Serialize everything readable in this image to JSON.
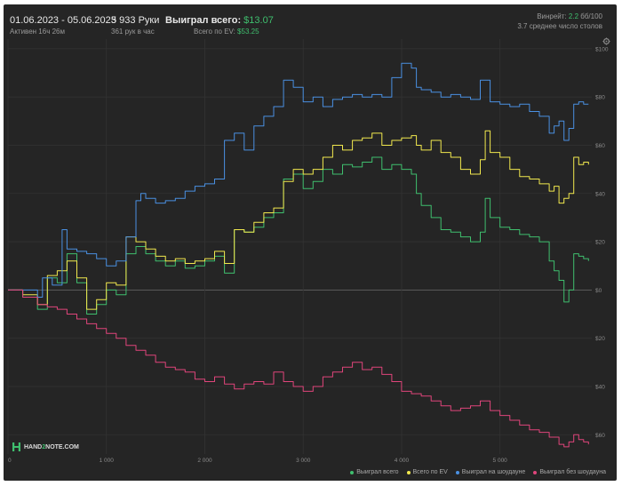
{
  "header": {
    "date_range": "01.06.2023 - 05.06.2023",
    "active": "Активен 16ч 26м",
    "hands": "5 933 Руки",
    "hands_per_hour": "361 рук в час",
    "won_total_label": "Выиграл всего:",
    "won_total_value": "$13.07",
    "ev_label": "Всего по EV:",
    "ev_value": "$53.25",
    "winrate_label": "Винрейт:",
    "winrate_value": "2.2",
    "winrate_unit": "бб/100",
    "avg_tables": "3.7 среднее число столов"
  },
  "logo": {
    "text_part1": "HAND",
    "text_part2": "2",
    "text_part3": "NOTE.COM"
  },
  "colors": {
    "background": "#252525",
    "won_total": "#3fbf6e",
    "ev": "#f2e94e",
    "showdown": "#4a90e2",
    "non_showdown": "#e0457b",
    "accent_green": "#3fbf6e"
  },
  "chart_data": {
    "type": "line",
    "x_ticks": [
      0,
      1000,
      2000,
      3000,
      4000,
      5000
    ],
    "x_tick_labels": [
      "0",
      "1 000",
      "2 000",
      "3 000",
      "4 000",
      "5 000"
    ],
    "y_ticks": [
      100,
      80,
      60,
      40,
      20,
      0,
      -20,
      -40,
      -60
    ],
    "y_tick_labels": [
      "$100",
      "$80",
      "$60",
      "$40",
      "$20",
      "$0",
      "$20",
      "$40",
      "$60"
    ],
    "xlim": [
      0,
      5933
    ],
    "ylim": [
      -68,
      104
    ],
    "grid": true,
    "legend_position": "bottom-right",
    "series": [
      {
        "name": "Выиграл всего",
        "color": "#3fbf6e",
        "points": [
          [
            0,
            0
          ],
          [
            150,
            -3
          ],
          [
            300,
            -8
          ],
          [
            400,
            5
          ],
          [
            500,
            3
          ],
          [
            600,
            15
          ],
          [
            700,
            3
          ],
          [
            800,
            -10
          ],
          [
            900,
            -6
          ],
          [
            1000,
            0
          ],
          [
            1100,
            -2
          ],
          [
            1200,
            15
          ],
          [
            1300,
            18
          ],
          [
            1400,
            15
          ],
          [
            1500,
            12
          ],
          [
            1600,
            10
          ],
          [
            1700,
            12
          ],
          [
            1800,
            9
          ],
          [
            1900,
            10
          ],
          [
            2000,
            12
          ],
          [
            2100,
            14
          ],
          [
            2200,
            7
          ],
          [
            2300,
            25
          ],
          [
            2400,
            24
          ],
          [
            2500,
            26
          ],
          [
            2600,
            30
          ],
          [
            2700,
            32
          ],
          [
            2800,
            46
          ],
          [
            2900,
            48
          ],
          [
            3000,
            42
          ],
          [
            3100,
            45
          ],
          [
            3200,
            50
          ],
          [
            3300,
            48
          ],
          [
            3400,
            52
          ],
          [
            3500,
            51
          ],
          [
            3600,
            53
          ],
          [
            3700,
            55
          ],
          [
            3800,
            50
          ],
          [
            3900,
            52
          ],
          [
            4000,
            50
          ],
          [
            4100,
            48
          ],
          [
            4150,
            40
          ],
          [
            4200,
            35
          ],
          [
            4300,
            30
          ],
          [
            4400,
            25
          ],
          [
            4500,
            24
          ],
          [
            4600,
            22
          ],
          [
            4700,
            20
          ],
          [
            4800,
            24
          ],
          [
            4850,
            38
          ],
          [
            4900,
            30
          ],
          [
            5000,
            26
          ],
          [
            5100,
            25
          ],
          [
            5200,
            23
          ],
          [
            5300,
            22
          ],
          [
            5400,
            20
          ],
          [
            5500,
            12
          ],
          [
            5550,
            8
          ],
          [
            5600,
            4
          ],
          [
            5650,
            -5
          ],
          [
            5700,
            0
          ],
          [
            5750,
            15
          ],
          [
            5800,
            14
          ],
          [
            5850,
            13
          ],
          [
            5900,
            12
          ]
        ]
      },
      {
        "name": "Всего по EV",
        "color": "#f2e94e",
        "points": [
          [
            0,
            0
          ],
          [
            150,
            -2
          ],
          [
            300,
            -6
          ],
          [
            400,
            6
          ],
          [
            500,
            8
          ],
          [
            600,
            12
          ],
          [
            700,
            5
          ],
          [
            800,
            -8
          ],
          [
            900,
            -4
          ],
          [
            1000,
            3
          ],
          [
            1100,
            2
          ],
          [
            1200,
            22
          ],
          [
            1300,
            20
          ],
          [
            1400,
            17
          ],
          [
            1500,
            14
          ],
          [
            1600,
            12
          ],
          [
            1700,
            13
          ],
          [
            1800,
            11
          ],
          [
            1900,
            12
          ],
          [
            2000,
            13
          ],
          [
            2100,
            16
          ],
          [
            2200,
            11
          ],
          [
            2300,
            25
          ],
          [
            2400,
            24
          ],
          [
            2500,
            28
          ],
          [
            2600,
            32
          ],
          [
            2700,
            34
          ],
          [
            2800,
            45
          ],
          [
            2900,
            50
          ],
          [
            3000,
            48
          ],
          [
            3100,
            50
          ],
          [
            3200,
            55
          ],
          [
            3300,
            60
          ],
          [
            3400,
            58
          ],
          [
            3500,
            62
          ],
          [
            3600,
            63
          ],
          [
            3700,
            65
          ],
          [
            3800,
            60
          ],
          [
            3900,
            62
          ],
          [
            4000,
            63
          ],
          [
            4100,
            64
          ],
          [
            4150,
            60
          ],
          [
            4200,
            58
          ],
          [
            4300,
            62
          ],
          [
            4400,
            57
          ],
          [
            4500,
            55
          ],
          [
            4600,
            50
          ],
          [
            4700,
            48
          ],
          [
            4800,
            54
          ],
          [
            4850,
            66
          ],
          [
            4900,
            57
          ],
          [
            5000,
            55
          ],
          [
            5100,
            50
          ],
          [
            5200,
            47
          ],
          [
            5300,
            46
          ],
          [
            5400,
            44
          ],
          [
            5500,
            41
          ],
          [
            5550,
            43
          ],
          [
            5600,
            36
          ],
          [
            5650,
            38
          ],
          [
            5700,
            40
          ],
          [
            5750,
            55
          ],
          [
            5800,
            52
          ],
          [
            5850,
            53
          ],
          [
            5900,
            52
          ]
        ]
      },
      {
        "name": "Выиграл на шоудауне",
        "color": "#4a90e2",
        "points": [
          [
            0,
            0
          ],
          [
            150,
            0
          ],
          [
            300,
            -3
          ],
          [
            350,
            5
          ],
          [
            450,
            2
          ],
          [
            550,
            25
          ],
          [
            600,
            17
          ],
          [
            700,
            16
          ],
          [
            800,
            15
          ],
          [
            900,
            13
          ],
          [
            1000,
            10
          ],
          [
            1100,
            12
          ],
          [
            1200,
            22
          ],
          [
            1300,
            37
          ],
          [
            1350,
            40
          ],
          [
            1400,
            38
          ],
          [
            1500,
            36
          ],
          [
            1600,
            37
          ],
          [
            1700,
            38
          ],
          [
            1800,
            41
          ],
          [
            1900,
            43
          ],
          [
            2000,
            44
          ],
          [
            2100,
            46
          ],
          [
            2200,
            62
          ],
          [
            2300,
            65
          ],
          [
            2400,
            58
          ],
          [
            2500,
            68
          ],
          [
            2600,
            72
          ],
          [
            2700,
            76
          ],
          [
            2800,
            87
          ],
          [
            2900,
            84
          ],
          [
            3000,
            78
          ],
          [
            3100,
            80
          ],
          [
            3200,
            76
          ],
          [
            3300,
            79
          ],
          [
            3400,
            80
          ],
          [
            3500,
            81
          ],
          [
            3600,
            80
          ],
          [
            3700,
            81
          ],
          [
            3800,
            80
          ],
          [
            3900,
            88
          ],
          [
            4000,
            94
          ],
          [
            4100,
            92
          ],
          [
            4150,
            84
          ],
          [
            4200,
            83
          ],
          [
            4300,
            82
          ],
          [
            4400,
            80
          ],
          [
            4500,
            81
          ],
          [
            4600,
            80
          ],
          [
            4700,
            79
          ],
          [
            4800,
            87
          ],
          [
            4900,
            78
          ],
          [
            5000,
            77
          ],
          [
            5100,
            76
          ],
          [
            5200,
            77
          ],
          [
            5300,
            74
          ],
          [
            5400,
            72
          ],
          [
            5500,
            65
          ],
          [
            5550,
            68
          ],
          [
            5600,
            70
          ],
          [
            5650,
            62
          ],
          [
            5700,
            67
          ],
          [
            5750,
            77
          ],
          [
            5800,
            78
          ],
          [
            5850,
            77
          ],
          [
            5900,
            77
          ]
        ]
      },
      {
        "name": "Выиграл без шоудауна",
        "color": "#e0457b",
        "points": [
          [
            0,
            0
          ],
          [
            150,
            -3
          ],
          [
            300,
            -6
          ],
          [
            400,
            -7
          ],
          [
            500,
            -8
          ],
          [
            600,
            -10
          ],
          [
            700,
            -12
          ],
          [
            800,
            -14
          ],
          [
            900,
            -16
          ],
          [
            1000,
            -18
          ],
          [
            1100,
            -20
          ],
          [
            1200,
            -23
          ],
          [
            1300,
            -25
          ],
          [
            1400,
            -27
          ],
          [
            1500,
            -30
          ],
          [
            1600,
            -32
          ],
          [
            1700,
            -33
          ],
          [
            1800,
            -34
          ],
          [
            1900,
            -37
          ],
          [
            2000,
            -38
          ],
          [
            2100,
            -36
          ],
          [
            2200,
            -39
          ],
          [
            2300,
            -41
          ],
          [
            2400,
            -39
          ],
          [
            2500,
            -38
          ],
          [
            2600,
            -39
          ],
          [
            2700,
            -34
          ],
          [
            2800,
            -38
          ],
          [
            2900,
            -40
          ],
          [
            3000,
            -42
          ],
          [
            3100,
            -40
          ],
          [
            3200,
            -36
          ],
          [
            3300,
            -34
          ],
          [
            3400,
            -32
          ],
          [
            3500,
            -30
          ],
          [
            3600,
            -33
          ],
          [
            3700,
            -32
          ],
          [
            3800,
            -35
          ],
          [
            3900,
            -38
          ],
          [
            4000,
            -42
          ],
          [
            4100,
            -43
          ],
          [
            4200,
            -44
          ],
          [
            4300,
            -46
          ],
          [
            4400,
            -48
          ],
          [
            4500,
            -50
          ],
          [
            4600,
            -49
          ],
          [
            4700,
            -48
          ],
          [
            4800,
            -46
          ],
          [
            4900,
            -50
          ],
          [
            5000,
            -52
          ],
          [
            5100,
            -54
          ],
          [
            5200,
            -56
          ],
          [
            5300,
            -58
          ],
          [
            5400,
            -59
          ],
          [
            5500,
            -61
          ],
          [
            5600,
            -64
          ],
          [
            5650,
            -65
          ],
          [
            5700,
            -63
          ],
          [
            5750,
            -60
          ],
          [
            5800,
            -62
          ],
          [
            5850,
            -63
          ],
          [
            5900,
            -64
          ]
        ]
      }
    ]
  }
}
